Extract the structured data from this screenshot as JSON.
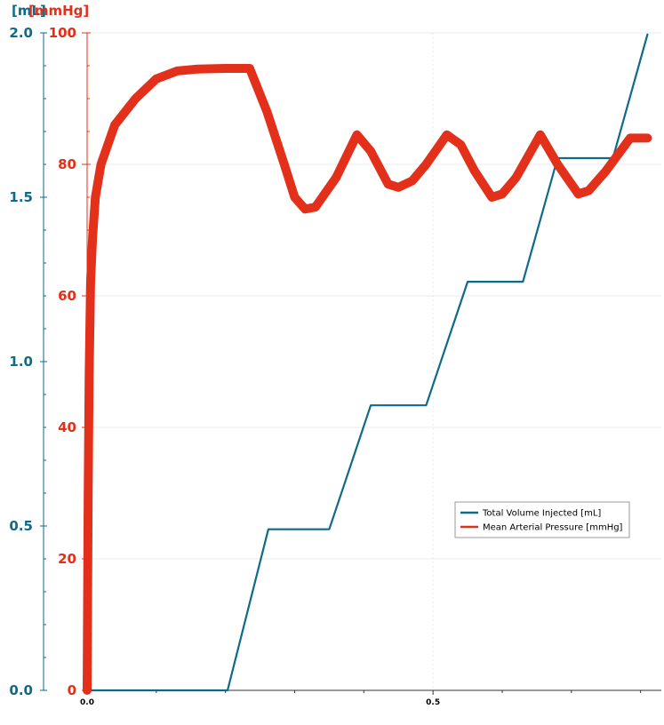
{
  "chart_data": {
    "type": "line",
    "axes": {
      "y_left": {
        "label": "[mL]",
        "range": [
          0,
          2
        ],
        "ticks": [
          "0.0",
          "0.5",
          "1.0",
          "1.5",
          "2.0"
        ],
        "color": "#0e6a89"
      },
      "y_mid": {
        "label": "[mmHg]",
        "range": [
          0,
          100
        ],
        "ticks": [
          "0",
          "20",
          "40",
          "60",
          "80",
          "100"
        ],
        "color": "#e3301a"
      },
      "x": {
        "range": [
          0,
          0.83
        ],
        "ticks": [
          "0.0",
          "0.5"
        ]
      }
    },
    "series": [
      {
        "name": "Total Volume Injected [mL]",
        "axis": "y_left",
        "color": "#0e6a89",
        "x": [
          0,
          0.203,
          0.262,
          0.35,
          0.41,
          0.49,
          0.55,
          0.63,
          0.68,
          0.76,
          0.81
        ],
        "y": [
          0,
          0,
          0.49,
          0.49,
          0.867,
          0.867,
          1.243,
          1.243,
          1.619,
          1.619,
          1.995
        ]
      },
      {
        "name": "Mean Arterial Pressure [mmHg]",
        "axis": "y_mid",
        "color": "#e3301a",
        "x": [
          0,
          0.0015,
          0.003,
          0.005,
          0.008,
          0.012,
          0.02,
          0.04,
          0.07,
          0.1,
          0.13,
          0.16,
          0.2,
          0.235,
          0.26,
          0.285,
          0.3,
          0.315,
          0.33,
          0.36,
          0.39,
          0.41,
          0.435,
          0.45,
          0.47,
          0.49,
          0.52,
          0.54,
          0.56,
          0.585,
          0.6,
          0.62,
          0.655,
          0.68,
          0.71,
          0.725,
          0.75,
          0.785,
          0.81
        ],
        "y": [
          0,
          30,
          48,
          62,
          69,
          75,
          80,
          86,
          90,
          93,
          94.2,
          94.5,
          94.6,
          94.6,
          88,
          80,
          75,
          73.2,
          73.5,
          78,
          84.5,
          82,
          77,
          76.5,
          77.5,
          80,
          84.5,
          83,
          79,
          75,
          75.5,
          78,
          84.5,
          80,
          75.5,
          76,
          79,
          84,
          84
        ]
      }
    ],
    "legend": {
      "position": "lower-right"
    },
    "grid": true
  }
}
